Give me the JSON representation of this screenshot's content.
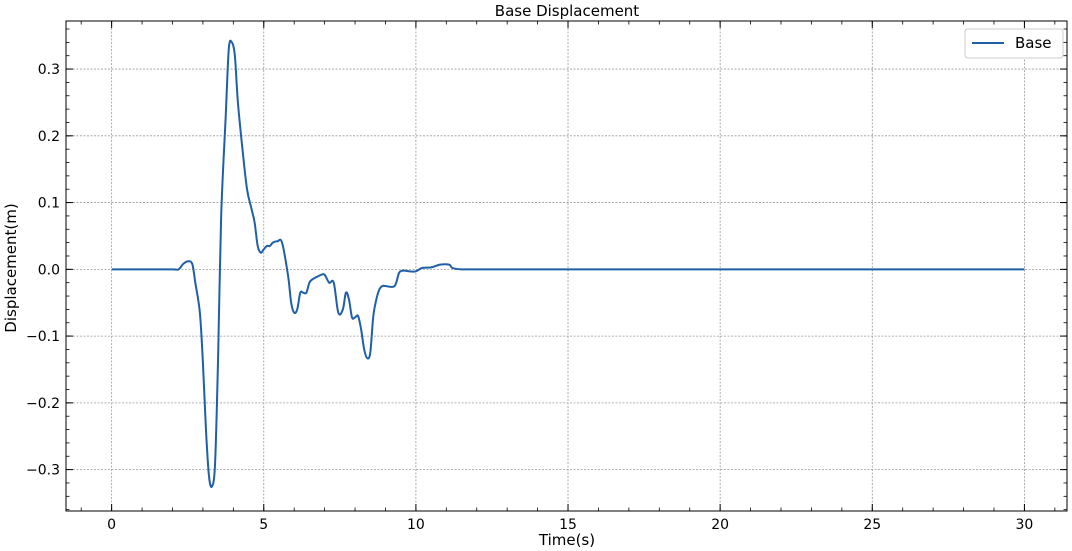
{
  "chart_data": {
    "type": "line",
    "title": "Base Displacement",
    "xlabel": "Time(s)",
    "ylabel": "Displacement(m)",
    "xlim": [
      -1.5,
      31.4
    ],
    "ylim": [
      -0.362,
      0.372
    ],
    "x_ticks": [
      0,
      5,
      10,
      15,
      20,
      25,
      30
    ],
    "x_tick_labels": [
      "0",
      "5",
      "10",
      "15",
      "20",
      "25",
      "30"
    ],
    "y_ticks": [
      -0.3,
      -0.2,
      -0.1,
      0.0,
      0.1,
      0.2,
      0.3
    ],
    "y_tick_labels": [
      "−0.3",
      "−0.2",
      "−0.1",
      "0.0",
      "0.1",
      "0.2",
      "0.3"
    ],
    "grid": true,
    "legend_position": "top-right",
    "colors": {
      "series": "#1f5fa8",
      "grid": "#9a9a9a",
      "axis": "#000000"
    },
    "series": [
      {
        "name": "Base",
        "x": [
          0,
          1.0,
          2.0,
          2.2,
          2.35,
          2.5,
          2.65,
          2.75,
          2.9,
          3.0,
          3.1,
          3.2,
          3.3,
          3.4,
          3.5,
          3.6,
          3.75,
          3.85,
          3.95,
          4.05,
          4.15,
          4.3,
          4.45,
          4.6,
          4.7,
          4.8,
          4.9,
          5.0,
          5.1,
          5.2,
          5.3,
          5.45,
          5.6,
          5.8,
          5.9,
          6.0,
          6.1,
          6.2,
          6.3,
          6.4,
          6.5,
          6.6,
          6.8,
          6.9,
          7.0,
          7.15,
          7.3,
          7.45,
          7.6,
          7.7,
          7.8,
          7.9,
          8.0,
          8.1,
          8.2,
          8.3,
          8.4,
          8.5,
          8.6,
          8.7,
          8.8,
          8.9,
          9.0,
          9.3,
          9.45,
          9.6,
          9.8,
          10.0,
          10.2,
          10.5,
          10.8,
          11.1,
          11.2,
          11.5,
          12,
          15,
          20,
          25,
          30
        ],
        "y": [
          0.0,
          0.0,
          0.0,
          0.0,
          0.008,
          0.012,
          0.008,
          -0.02,
          -0.065,
          -0.14,
          -0.24,
          -0.31,
          -0.325,
          -0.29,
          -0.13,
          0.08,
          0.23,
          0.33,
          0.34,
          0.32,
          0.25,
          0.18,
          0.12,
          0.09,
          0.07,
          0.035,
          0.025,
          0.03,
          0.035,
          0.035,
          0.04,
          0.042,
          0.04,
          -0.01,
          -0.05,
          -0.065,
          -0.06,
          -0.035,
          -0.035,
          -0.035,
          -0.02,
          -0.015,
          -0.01,
          -0.008,
          -0.008,
          -0.02,
          -0.02,
          -0.065,
          -0.06,
          -0.035,
          -0.045,
          -0.072,
          -0.072,
          -0.07,
          -0.09,
          -0.12,
          -0.133,
          -0.125,
          -0.07,
          -0.045,
          -0.03,
          -0.025,
          -0.025,
          -0.025,
          -0.005,
          -0.002,
          -0.003,
          -0.003,
          0.002,
          0.003,
          0.007,
          0.007,
          0.002,
          0.0,
          0.0,
          0.0,
          0.0,
          0.0,
          0.0
        ]
      }
    ]
  }
}
